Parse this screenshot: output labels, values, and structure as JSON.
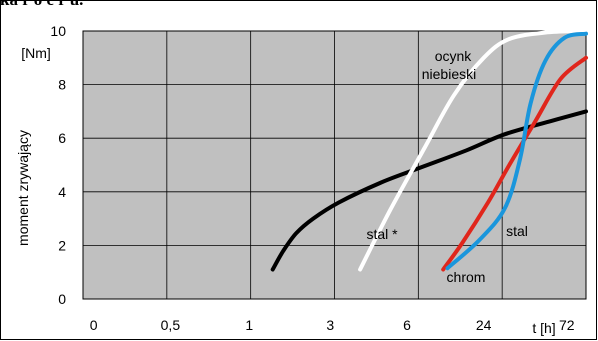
{
  "header": {
    "clipped_title": "ka r o e r u."
  },
  "chart_data": {
    "type": "line",
    "title": "",
    "xlabel": "t [h]",
    "ylabel": "moment zrywający",
    "yunit": "[Nm]",
    "ylim": [
      0,
      10
    ],
    "yticks": [
      "0",
      "2",
      "4",
      "6",
      "8",
      "10"
    ],
    "xticks": [
      "0",
      "0,5",
      "1",
      "3",
      "6",
      "24",
      "72"
    ],
    "grid": true,
    "plot_background": "#c0c0c0",
    "series": [
      {
        "name": "stal *",
        "color": "#000000",
        "points": [
          [
            4.45,
            1.1
          ],
          [
            4.7,
            1.8
          ],
          [
            5.0,
            2.45
          ],
          [
            5.4,
            3.0
          ],
          [
            6.0,
            3.6
          ],
          [
            7.0,
            4.35
          ],
          [
            8.0,
            4.95
          ],
          [
            9.0,
            5.55
          ],
          [
            9.9,
            6.15
          ],
          [
            11.0,
            6.65
          ],
          [
            11.8,
            7.0
          ]
        ]
      },
      {
        "name": "ocynk niebieski",
        "color": "#ffffff",
        "points": [
          [
            6.5,
            1.1
          ],
          [
            7.2,
            3.3
          ],
          [
            8.0,
            5.6
          ],
          [
            8.7,
            7.6
          ],
          [
            9.4,
            9.0
          ],
          [
            10.0,
            9.7
          ],
          [
            10.9,
            9.95
          ],
          [
            11.8,
            10.0
          ]
        ]
      },
      {
        "name": "chrom",
        "color": "#e0261c",
        "points": [
          [
            8.45,
            1.1
          ],
          [
            8.9,
            2.1
          ],
          [
            9.5,
            3.6
          ],
          [
            10.0,
            5.0
          ],
          [
            10.6,
            6.6
          ],
          [
            11.2,
            8.2
          ],
          [
            11.8,
            9.0
          ]
        ]
      },
      {
        "name": "stal",
        "color": "#1a96dc",
        "points": [
          [
            8.55,
            1.15
          ],
          [
            9.3,
            2.2
          ],
          [
            9.9,
            3.4
          ],
          [
            10.25,
            5.2
          ],
          [
            10.5,
            7.3
          ],
          [
            10.85,
            8.9
          ],
          [
            11.3,
            9.75
          ],
          [
            11.8,
            9.9
          ]
        ]
      }
    ],
    "annotations": [
      {
        "text": "ocynk",
        "series": "ocynk niebieski"
      },
      {
        "text": "niebieski",
        "series": "ocynk niebieski"
      },
      {
        "text": "stal *",
        "series": "stal *"
      },
      {
        "text": "stal",
        "series": "stal"
      },
      {
        "text": "chrom",
        "series": "chrom"
      }
    ]
  }
}
